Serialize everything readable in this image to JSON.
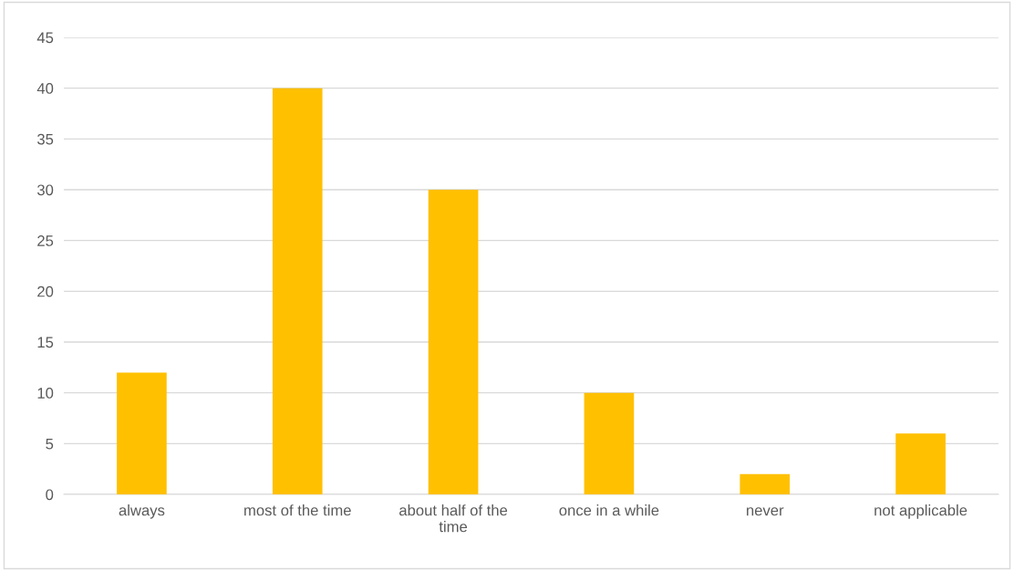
{
  "chart_data": {
    "type": "bar",
    "categories": [
      "always",
      "most of the time",
      "about half of the time",
      "once in a while",
      "never",
      "not applicable"
    ],
    "values": [
      12,
      40,
      30,
      10,
      2,
      6
    ],
    "color": "#ffc000",
    "ylim": [
      0,
      45
    ],
    "yticks": [
      0,
      5,
      10,
      15,
      20,
      25,
      30,
      35,
      40,
      45
    ],
    "grid": "y",
    "legend": false
  }
}
